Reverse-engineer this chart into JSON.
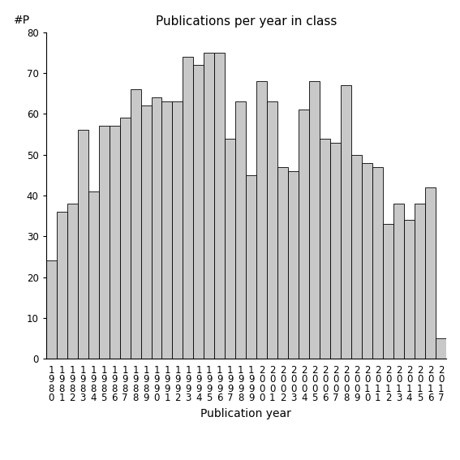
{
  "title": "Publications per year in class",
  "xlabel": "Publication year",
  "ylabel": "#P",
  "bar_color": "#c8c8c8",
  "edge_color": "#000000",
  "years": [
    "1980",
    "1981",
    "1982",
    "1983",
    "1984",
    "1985",
    "1986",
    "1987",
    "1988",
    "1989",
    "1990",
    "1991",
    "1992",
    "1993",
    "1994",
    "1995",
    "1996",
    "1997",
    "1998",
    "1999",
    "2000",
    "2001",
    "2002",
    "2003",
    "2004",
    "2005",
    "2006",
    "2007",
    "2008",
    "2009",
    "2010",
    "2011",
    "2012",
    "2013",
    "2014",
    "2015",
    "2016",
    "2017"
  ],
  "values": [
    24,
    36,
    38,
    56,
    41,
    57,
    57,
    59,
    66,
    62,
    64,
    63,
    63,
    74,
    72,
    75,
    75,
    54,
    63,
    45,
    68,
    63,
    47,
    46,
    61,
    68,
    54,
    53,
    67,
    50,
    48,
    47,
    33,
    38,
    34,
    38,
    42,
    5
  ],
  "ylim": [
    0,
    80
  ],
  "yticks": [
    0,
    10,
    20,
    30,
    40,
    50,
    60,
    70,
    80
  ],
  "background_color": "#ffffff",
  "title_fontsize": 11,
  "label_fontsize": 10,
  "tick_fontsize": 8.5
}
